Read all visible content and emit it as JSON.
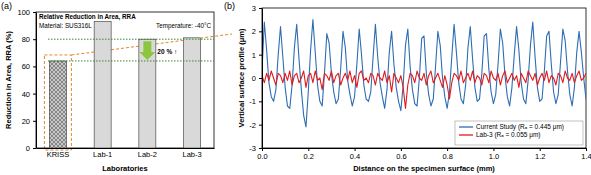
{
  "chart_data": [
    {
      "type": "bar",
      "title": "(a)",
      "categories": [
        "KRISS",
        "Lab-1",
        "Lab-2",
        "Lab-3"
      ],
      "values": [
        64,
        93,
        80,
        81
      ],
      "colors": [
        "#c8c8c8",
        "#d9d9d9",
        "#d9d9d9",
        "#d9d9d9"
      ],
      "ylim": [
        0,
        100
      ],
      "yticks": [
        0,
        20,
        40,
        60,
        80,
        100
      ],
      "xlabel": "Laboratories",
      "ylabel": "Reduction in Area, RRA (%)",
      "annotations": [
        "Relative Reduction in Area, RRA",
        "Material: SUS316L",
        "Temperature: -40°C"
      ],
      "hlines": [
        80,
        64
      ],
      "change_label": "20 % ↑"
    },
    {
      "type": "line",
      "title": "(b)",
      "x": [
        0,
        0.01,
        0.02,
        0.03,
        0.04,
        0.05,
        0.06,
        0.07,
        0.08,
        0.09,
        0.1,
        0.11,
        0.12,
        0.13,
        0.14,
        0.15,
        0.16,
        0.17,
        0.18,
        0.19,
        0.2,
        0.21,
        0.22,
        0.23,
        0.24,
        0.25,
        0.26,
        0.27,
        0.28,
        0.29,
        0.3,
        0.31,
        0.32,
        0.33,
        0.34,
        0.35,
        0.36,
        0.37,
        0.38,
        0.39,
        0.4,
        0.41,
        0.42,
        0.43,
        0.44,
        0.45,
        0.46,
        0.47,
        0.48,
        0.49,
        0.5,
        0.51,
        0.52,
        0.53,
        0.54,
        0.55,
        0.56,
        0.57,
        0.58,
        0.59,
        0.6,
        0.61,
        0.62,
        0.63,
        0.64,
        0.65,
        0.66,
        0.67,
        0.68,
        0.69,
        0.7,
        0.71,
        0.72,
        0.73,
        0.74,
        0.75,
        0.76,
        0.77,
        0.78,
        0.79,
        0.8,
        0.81,
        0.82,
        0.83,
        0.84,
        0.85,
        0.86,
        0.87,
        0.88,
        0.89,
        0.9,
        0.91,
        0.92,
        0.93,
        0.94,
        0.95,
        0.96,
        0.97,
        0.98,
        0.99,
        1,
        1.01,
        1.02,
        1.03,
        1.04,
        1.05,
        1.06,
        1.07,
        1.08,
        1.09,
        1.1,
        1.11,
        1.12,
        1.13,
        1.14,
        1.15,
        1.16,
        1.17,
        1.18,
        1.19,
        1.2,
        1.21,
        1.22,
        1.23,
        1.24,
        1.25,
        1.26,
        1.27,
        1.28,
        1.29,
        1.3,
        1.31,
        1.32,
        1.33,
        1.34,
        1.35,
        1.36,
        1.37,
        1.38,
        1.39,
        1.4
      ],
      "series": [
        {
          "name": "Current Study (Rₐ = 0.445 μm)",
          "color": "#2e6db4",
          "values": [
            0.3,
            2.4,
            1.2,
            -0.2,
            -0.8,
            -1.0,
            -0.5,
            1.0,
            2.2,
            0.9,
            -0.4,
            -1.2,
            -1.3,
            -0.3,
            1.3,
            2.3,
            0.8,
            -0.5,
            -1.6,
            -2.1,
            -0.6,
            1.2,
            2.5,
            1.1,
            -0.3,
            -1.0,
            -1.2,
            0.2,
            1.9,
            1.5,
            0.2,
            -0.6,
            -1.1,
            -0.9,
            0.4,
            2.0,
            1.3,
            -0.1,
            -0.7,
            -1.2,
            -0.8,
            0.6,
            2.1,
            1.0,
            -0.3,
            -0.9,
            -1.0,
            -0.6,
            0.9,
            2.3,
            0.9,
            -0.2,
            -0.8,
            -1.3,
            -0.5,
            1.1,
            2.0,
            0.6,
            -0.4,
            -1.0,
            -1.4,
            -0.3,
            1.4,
            2.1,
            0.5,
            -0.5,
            -1.1,
            -1.2,
            0.0,
            1.7,
            1.8,
            0.2,
            -0.7,
            -1.2,
            -0.9,
            0.5,
            2.0,
            1.4,
            0.0,
            -0.8,
            -1.3,
            -0.6,
            0.9,
            2.3,
            1.1,
            -0.2,
            -0.9,
            -1.1,
            -0.3,
            1.3,
            2.2,
            0.8,
            -0.4,
            -1.0,
            -0.9,
            0.2,
            1.8,
            1.9,
            0.4,
            -0.6,
            -1.1,
            -0.7,
            0.6,
            2.1,
            1.5,
            0.1,
            -0.8,
            -1.2,
            -0.4,
            1.0,
            2.2,
            1.2,
            -0.2,
            -0.9,
            -1.1,
            -0.1,
            1.4,
            2.4,
            0.9,
            -0.4,
            -1.0,
            -0.9,
            0.3,
            1.8,
            2.0,
            0.6,
            -0.6,
            -1.1,
            -0.7,
            0.7,
            2.1,
            1.6,
            0.3,
            -0.7,
            -1.2,
            -0.4,
            1.1,
            2.0,
            1.1,
            0.0,
            -0.9
          ]
        },
        {
          "name": "Lab-3 (Rₐ = 0.055 μm)",
          "color": "#e31a1c",
          "values": [
            0.1,
            -0.2,
            0.2,
            -0.1,
            0.3,
            0.0,
            -0.3,
            0.2,
            0.1,
            -0.2,
            0.2,
            -0.1,
            0.3,
            -0.3,
            0.1,
            0.2,
            -0.2,
            0.0,
            0.3,
            -0.4,
            0.1,
            0.2,
            -0.2,
            0.3,
            -0.1,
            0.0,
            -0.5,
            0.2,
            0.1,
            -0.1,
            0.3,
            -0.2,
            0.1,
            0.2,
            -0.3,
            0.0,
            0.2,
            -0.1,
            0.3,
            -0.2,
            0.1,
            -0.4,
            0.2,
            0.3,
            -0.1,
            0.0,
            -0.2,
            0.2,
            0.1,
            -0.3,
            0.2,
            0.0,
            -0.1,
            0.3,
            -0.2,
            0.1,
            -0.6,
            0.2,
            0.0,
            -0.2,
            0.1,
            -0.4,
            -1.3,
            -0.3,
            0.2,
            0.1,
            -0.2,
            0.3,
            0.0,
            -0.1,
            0.2,
            -0.3,
            0.1,
            0.3,
            -0.2,
            0.0,
            0.2,
            -0.1,
            -0.4,
            0.1,
            -0.3,
            -0.9,
            -0.2,
            0.2,
            0.1,
            -0.1,
            0.3,
            -0.2,
            0.0,
            0.2,
            -0.1,
            0.3,
            -0.2,
            0.1,
            0.0,
            -0.3,
            0.2,
            0.1,
            -0.2,
            0.3,
            0.0,
            -0.1,
            0.2,
            -0.3,
            0.1,
            0.3,
            -0.2,
            0.0,
            0.2,
            -0.1,
            0.1,
            -0.4,
            0.2,
            0.0,
            -0.2,
            0.3,
            0.1,
            -0.1,
            0.2,
            -0.3,
            0.0,
            0.2,
            -0.1,
            0.3,
            -0.2,
            0.1,
            0.0,
            -0.3,
            0.2,
            0.1,
            -0.2,
            0.3,
            0.0,
            -0.1,
            0.2,
            -0.2,
            0.1,
            0.3,
            -0.1,
            0.0,
            0.2
          ]
        }
      ],
      "xlim": [
        0,
        1.4
      ],
      "xticks": [
        {
          "value": 0,
          "label": "0.0"
        },
        0.2,
        0.4,
        0.6,
        0.8,
        {
          "value": 1,
          "label": "1.0"
        },
        1.2,
        1.4
      ],
      "ylim": [
        -3,
        3
      ],
      "yticks": [
        -3,
        -2,
        -1,
        0,
        1,
        2,
        3
      ],
      "xlabel": "Distance on the specimen surface (mm)",
      "ylabel": "Vertical surface profile (μm)",
      "legend": "lower right"
    }
  ]
}
